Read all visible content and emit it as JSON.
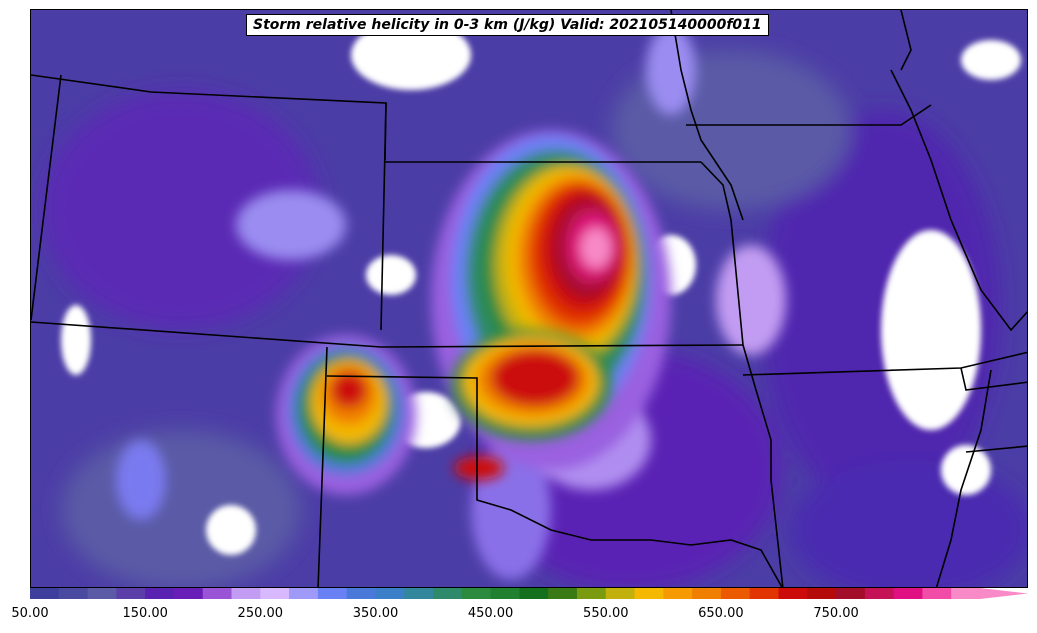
{
  "title": "Storm relative helicity in 0-3 km (J/kg) Valid: 202105140000f011",
  "colorbar": {
    "min": 50,
    "max": 835,
    "step": 25,
    "extend": "max",
    "tick_labels": [
      "50.00",
      "150.00",
      "250.00",
      "350.00",
      "450.00",
      "550.00",
      "650.00",
      "750.00"
    ],
    "tick_values": [
      50,
      150,
      250,
      350,
      450,
      550,
      650,
      750
    ],
    "colors": [
      "#3e3e9c",
      "#4a4aa0",
      "#5a5aa6",
      "#5b3ea8",
      "#5a22b0",
      "#6a1eb8",
      "#9a55d6",
      "#c29cf2",
      "#d8b8ff",
      "#9f9af8",
      "#6a80f5",
      "#4a7ad9",
      "#3a7fc8",
      "#33879c",
      "#2e8a6b",
      "#2b8a3d",
      "#218030",
      "#15701e",
      "#3a7a14",
      "#7a9a10",
      "#c2b00c",
      "#f4b800",
      "#f59a00",
      "#f07f00",
      "#ec5a00",
      "#e23400",
      "#cc0a0a",
      "#b40a0a",
      "#a20e2a",
      "#c41256",
      "#e01082",
      "#f04ca8",
      "#f88ac8"
    ]
  },
  "chart_data": {
    "type": "heatmap",
    "title": "Storm relative helicity in 0-3 km (J/kg) Valid: 202105140000f011",
    "variable": "Storm relative helicity in 0-3 km",
    "units": "J/kg",
    "valid_time": "202105140000f011",
    "color_range": [
      50,
      835
    ],
    "tick_values": [
      50,
      150,
      250,
      350,
      450,
      550,
      650,
      750
    ]
  }
}
